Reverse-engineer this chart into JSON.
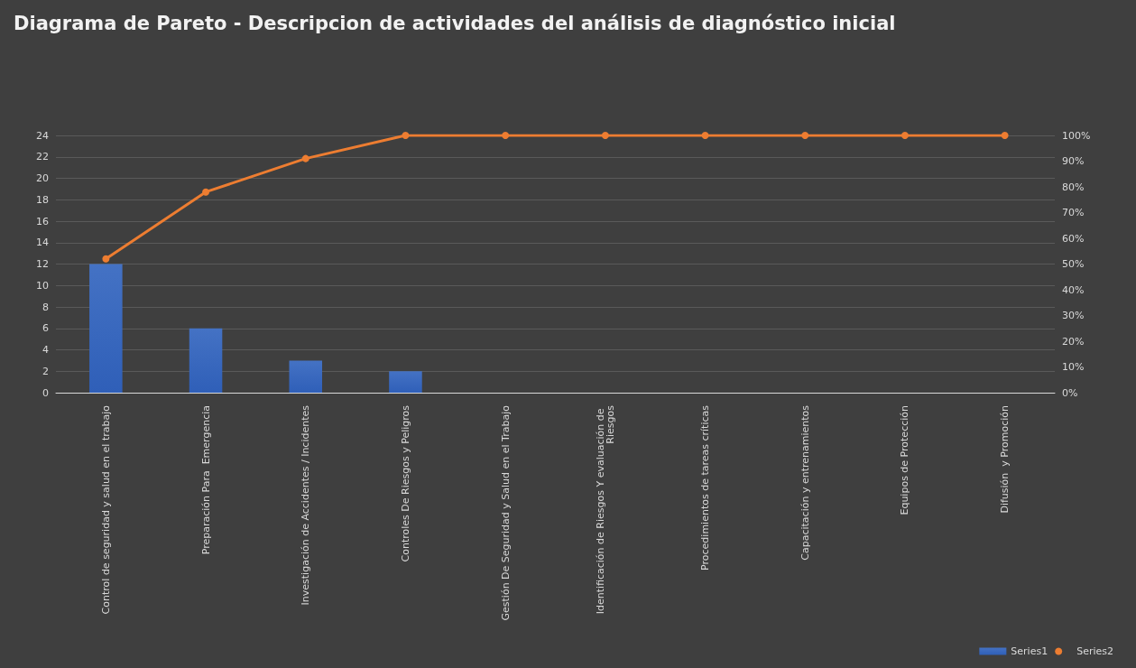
{
  "chart_data": {
    "type": "bar",
    "title": "Diagrama de Pareto - Descripcion de actividades del análisis de diagnóstico inicial",
    "categories": [
      "Control de seguridad y salud en el trabajo",
      "Preparación Para  Emergencia",
      "Investigación de Accidentes / Incidentes",
      "Controles De Riesgos y Peligros",
      "Gestión De Seguridad y Salud en el Trabajo",
      "Identificación de Riesgos Y evaluación de Riesgos",
      "Procedimientos de tareas críticas",
      "Capacitación y entrenamientos",
      "Equipos de Protección",
      "Difusión  y Promoción"
    ],
    "series": [
      {
        "name": "Series1",
        "color": "#4472c4",
        "values": [
          12,
          6,
          3,
          2,
          0,
          0,
          0,
          0,
          0,
          0
        ]
      },
      {
        "name": "Series2",
        "type": "line",
        "axis": "y2",
        "color": "#ed7d31",
        "values": [
          52,
          78,
          91,
          100,
          100,
          100,
          100,
          100,
          100,
          100
        ]
      }
    ],
    "ylim": [
      0,
      24
    ],
    "yticks": [
      0,
      2,
      4,
      6,
      8,
      10,
      12,
      14,
      16,
      18,
      20,
      22,
      24
    ],
    "y2lim": [
      0,
      100
    ],
    "y2ticks": [
      {
        "value": 0,
        "label": "0%"
      },
      {
        "value": 10,
        "label": "10%"
      },
      {
        "value": 20,
        "label": "20%"
      },
      {
        "value": 30,
        "label": "30%"
      },
      {
        "value": 40,
        "label": "40%"
      },
      {
        "value": 50,
        "label": "50%"
      },
      {
        "value": 60,
        "label": "60%"
      },
      {
        "value": 70,
        "label": "70%"
      },
      {
        "value": 80,
        "label": "80%"
      },
      {
        "value": 90,
        "label": "90%"
      },
      {
        "value": 100,
        "label": "100%"
      }
    ],
    "grid": "y",
    "legend": "bottom right",
    "marker": "circle"
  }
}
